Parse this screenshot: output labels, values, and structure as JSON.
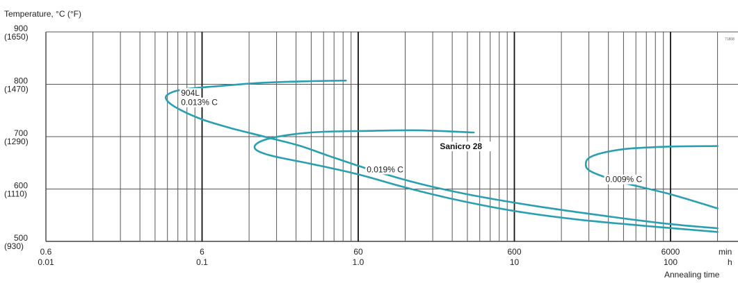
{
  "chart_data": {
    "type": "line",
    "ylabel": "Temperature, °C (°F)",
    "xlabel": "Annealing time",
    "corner_code": "71808",
    "x_scale": "log",
    "x_unit": "min",
    "x_unit_secondary": "h",
    "xlim": [
      0.6,
      12000
    ],
    "ylim": [
      500,
      900
    ],
    "grid": true,
    "x_major_ticks": [
      {
        "value": 0.6,
        "primary": "0.6",
        "secondary": "0.01"
      },
      {
        "value": 6,
        "primary": "6",
        "secondary": "0.1"
      },
      {
        "value": 60,
        "primary": "60",
        "secondary": "1.0"
      },
      {
        "value": 600,
        "primary": "600",
        "secondary": "10"
      },
      {
        "value": 6000,
        "primary": "6000",
        "secondary": "100"
      }
    ],
    "x_unit_labels": {
      "primary": "min",
      "secondary": "h"
    },
    "y_ticks": [
      {
        "value": 500,
        "celsius": "500",
        "fahrenheit": "(930)"
      },
      {
        "value": 600,
        "celsius": "600",
        "fahrenheit": "(1110)"
      },
      {
        "value": 700,
        "celsius": "700",
        "fahrenheit": "(1290)"
      },
      {
        "value": 800,
        "celsius": "800",
        "fahrenheit": "(1470)"
      },
      {
        "value": 900,
        "celsius": "900",
        "fahrenheit": "(1650)"
      }
    ],
    "series_color": "#2a9fb0",
    "series": [
      {
        "name": "904L 0.013% C",
        "points": [
          [
            50,
            807
          ],
          [
            30,
            806
          ],
          [
            15,
            803
          ],
          [
            8,
            797
          ],
          [
            4.5,
            790
          ],
          [
            3.6,
            780
          ],
          [
            3.6,
            768
          ],
          [
            4.3,
            752
          ],
          [
            6,
            733
          ],
          [
            9,
            717
          ],
          [
            15,
            700
          ],
          [
            25,
            683
          ],
          [
            40,
            662
          ],
          [
            70,
            638
          ],
          [
            140,
            612
          ],
          [
            300,
            590
          ],
          [
            800,
            568
          ],
          [
            2500,
            547
          ],
          [
            6000,
            533
          ],
          [
            12000,
            525
          ]
        ]
      },
      {
        "name": "0.019% C",
        "points": [
          [
            330,
            708
          ],
          [
            150,
            712
          ],
          [
            70,
            711
          ],
          [
            30,
            708
          ],
          [
            16,
            696
          ],
          [
            13,
            680
          ],
          [
            16,
            665
          ],
          [
            30,
            648
          ],
          [
            60,
            628
          ],
          [
            120,
            603
          ],
          [
            250,
            580
          ],
          [
            600,
            558
          ],
          [
            1500,
            542
          ],
          [
            4000,
            530
          ],
          [
            12000,
            518
          ]
        ]
      },
      {
        "name": "0.009% C",
        "points": [
          [
            12000,
            682
          ],
          [
            6000,
            681
          ],
          [
            3000,
            676
          ],
          [
            1900,
            663
          ],
          [
            1720,
            647
          ],
          [
            1900,
            632
          ],
          [
            3000,
            612
          ],
          [
            6000,
            590
          ],
          [
            12000,
            563
          ]
        ]
      }
    ],
    "annotations": [
      {
        "text": "904L",
        "x": 4.4,
        "y": 778,
        "bold": false
      },
      {
        "text": "0.013% C",
        "x": 4.4,
        "y": 760,
        "bold": false
      },
      {
        "text": "0.019% C",
        "x": 68,
        "y": 632,
        "bold": false
      },
      {
        "text": "0.009% C",
        "x": 2300,
        "y": 613,
        "bold": false
      },
      {
        "text": "Sanicro 28",
        "x": 200,
        "y": 676,
        "bold": true
      }
    ]
  }
}
